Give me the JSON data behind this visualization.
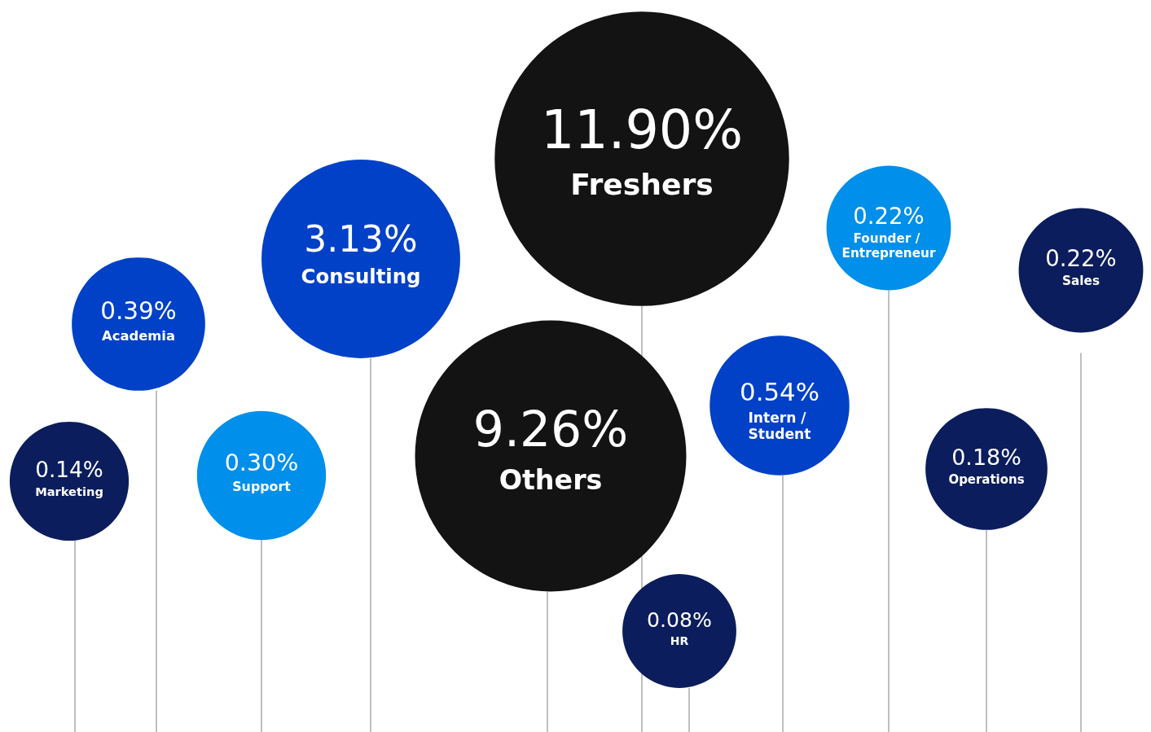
{
  "chart_data": {
    "type": "other",
    "categories": [
      "Marketing",
      "Academia",
      "Support",
      "Consulting",
      "Others",
      "Freshers",
      "HR",
      "Intern / Student",
      "Founder / Entrepreneur",
      "Operations",
      "Sales"
    ],
    "values": [
      0.14,
      0.39,
      0.3,
      3.13,
      9.26,
      11.9,
      0.08,
      0.54,
      0.22,
      0.18,
      0.22
    ],
    "value_labels": [
      "0.14%",
      "0.39%",
      "0.30%",
      "3.13%",
      "9.26%",
      "11.90%",
      "0.08%",
      "0.54%",
      "0.22%",
      "0.18%",
      "0.22%"
    ],
    "colors": [
      "#0b1d5c",
      "#0041c7",
      "#008fea",
      "#0041c7",
      "#131313",
      "#131313",
      "#0b1d5c",
      "#0041c7",
      "#008fea",
      "#0b1d5c",
      "#0b1d5c"
    ]
  }
}
